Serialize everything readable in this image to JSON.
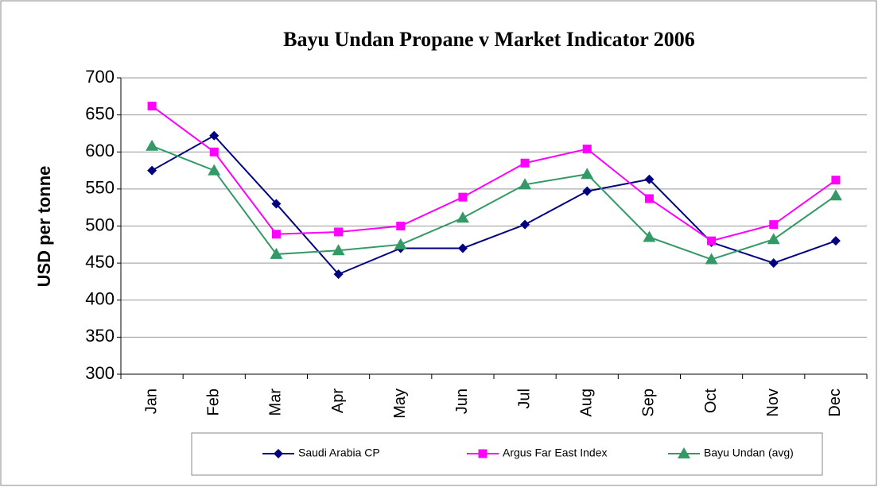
{
  "chart_data": {
    "type": "line",
    "title": "Bayu Undan Propane v Market Indicator 2006",
    "y_label": "USD per tonne",
    "categories": [
      "Jan",
      "Feb",
      "Mar",
      "Apr",
      "May",
      "Jun",
      "Jul",
      "Aug",
      "Sep",
      "Oct",
      "Nov",
      "Dec"
    ],
    "series": [
      {
        "name": "Saudi Arabia CP",
        "color": "#000080",
        "marker": "diamond",
        "values": [
          575,
          622,
          530,
          435,
          470,
          470,
          502,
          547,
          563,
          478,
          450,
          480
        ]
      },
      {
        "name": "Argus Far East Index",
        "color": "#ff00ff",
        "marker": "square",
        "values": [
          662,
          600,
          489,
          492,
          500,
          539,
          585,
          604,
          537,
          480,
          502,
          562
        ]
      },
      {
        "name": "Bayu Undan (avg)",
        "color": "#339966",
        "marker": "triangle",
        "values": [
          608,
          575,
          462,
          467,
          475,
          511,
          556,
          570,
          485,
          455,
          482,
          541
        ]
      }
    ],
    "ylim": [
      300,
      700
    ],
    "yticks": [
      300,
      350,
      400,
      450,
      500,
      550,
      600,
      650,
      700
    ],
    "grid": true,
    "legend": "bottom"
  }
}
